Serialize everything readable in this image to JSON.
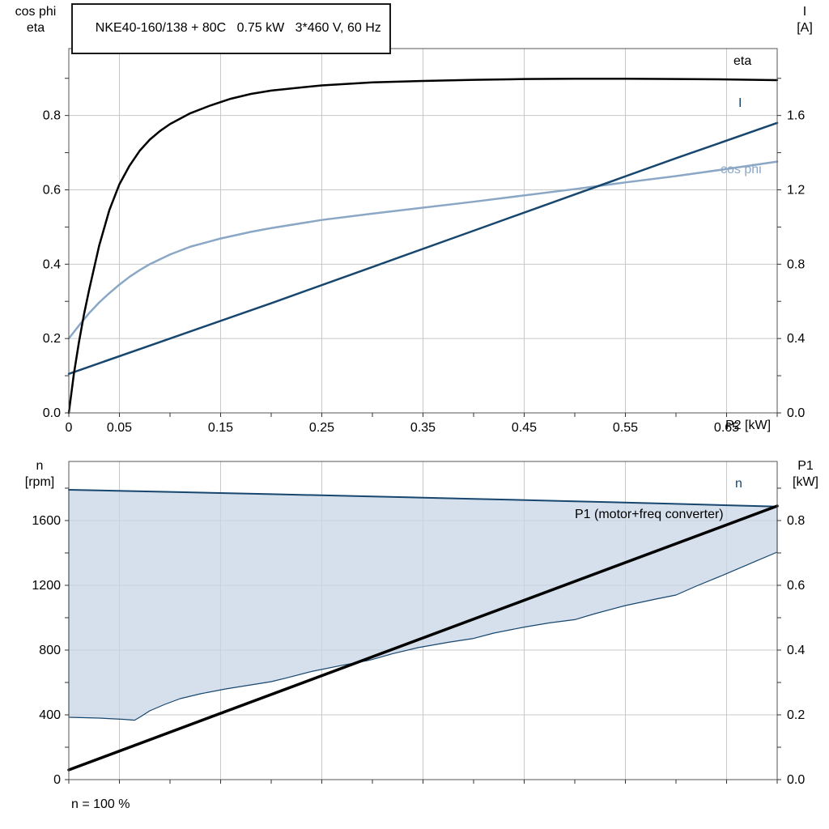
{
  "colors": {
    "grid": "#c8c8c8",
    "frame": "#555555",
    "eta": "#000000",
    "current": "#17466e",
    "cos_phi": "#8aa7c5",
    "speed": "#17466e",
    "p1": "#000000",
    "band_fill": "#c7d6e5"
  },
  "footnote": "n = 100 %",
  "chart_data": [
    {
      "id": "motor-efficiency-chart",
      "type": "line",
      "title": "NKE40-160/138 + 80C   0.75 kW   3*460 V, 60 Hz",
      "x": {
        "min": 0,
        "max": 0.7,
        "label": "P2 [kW]",
        "ticks": [
          {
            "v": 0,
            "t": "0"
          },
          {
            "v": 0.05,
            "t": "0.05"
          },
          {
            "v": 0.15,
            "t": "0.15"
          },
          {
            "v": 0.25,
            "t": "0.25"
          },
          {
            "v": 0.35,
            "t": "0.35"
          },
          {
            "v": 0.45,
            "t": "0.45"
          },
          {
            "v": 0.55,
            "t": "0.55"
          },
          {
            "v": 0.65,
            "t": "0.65"
          }
        ]
      },
      "yl": {
        "min": 0,
        "max": 0.98,
        "label": [
          "cos phi",
          "eta"
        ],
        "ticks": [
          {
            "v": 0.0,
            "t": "0.0"
          },
          {
            "v": 0.2,
            "t": "0.2"
          },
          {
            "v": 0.4,
            "t": "0.4"
          },
          {
            "v": 0.6,
            "t": "0.6"
          },
          {
            "v": 0.8,
            "t": "0.8"
          }
        ]
      },
      "yr": {
        "min": 0,
        "max": 1.96,
        "label": [
          "I",
          "[A]"
        ],
        "ticks": [
          {
            "v": 0.0,
            "t": "0.0"
          },
          {
            "v": 0.4,
            "t": "0.4"
          },
          {
            "v": 0.8,
            "t": "0.8"
          },
          {
            "v": 1.2,
            "t": "1.2"
          },
          {
            "v": 1.6,
            "t": "1.6"
          }
        ]
      },
      "series": [
        {
          "name": "cos phi",
          "axis": "l",
          "color": "#8aa7c5",
          "w": 2.5,
          "pts": [
            [
              0,
              0.2
            ],
            [
              0.01,
              0.235
            ],
            [
              0.02,
              0.268
            ],
            [
              0.03,
              0.297
            ],
            [
              0.04,
              0.322
            ],
            [
              0.05,
              0.345
            ],
            [
              0.06,
              0.366
            ],
            [
              0.07,
              0.384
            ],
            [
              0.08,
              0.4
            ],
            [
              0.1,
              0.426
            ],
            [
              0.12,
              0.447
            ],
            [
              0.15,
              0.469
            ],
            [
              0.18,
              0.487
            ],
            [
              0.2,
              0.497
            ],
            [
              0.25,
              0.519
            ],
            [
              0.3,
              0.536
            ],
            [
              0.35,
              0.552
            ],
            [
              0.4,
              0.568
            ],
            [
              0.45,
              0.585
            ],
            [
              0.5,
              0.602
            ],
            [
              0.55,
              0.62
            ],
            [
              0.6,
              0.637
            ],
            [
              0.65,
              0.656
            ],
            [
              0.7,
              0.676
            ]
          ]
        },
        {
          "name": "I",
          "axis": "r",
          "color": "#17466e",
          "w": 2.5,
          "pts": [
            [
              0,
              0.21
            ],
            [
              0.1,
              0.4
            ],
            [
              0.2,
              0.59
            ],
            [
              0.3,
              0.785
            ],
            [
              0.4,
              0.98
            ],
            [
              0.5,
              1.175
            ],
            [
              0.6,
              1.37
            ],
            [
              0.7,
              1.56
            ]
          ]
        },
        {
          "name": "eta",
          "axis": "l",
          "color": "#000000",
          "w": 2.5,
          "pts": [
            [
              0,
              0
            ],
            [
              0.005,
              0.105
            ],
            [
              0.01,
              0.19
            ],
            [
              0.015,
              0.265
            ],
            [
              0.02,
              0.33
            ],
            [
              0.03,
              0.45
            ],
            [
              0.04,
              0.545
            ],
            [
              0.05,
              0.615
            ],
            [
              0.06,
              0.665
            ],
            [
              0.07,
              0.705
            ],
            [
              0.08,
              0.735
            ],
            [
              0.09,
              0.758
            ],
            [
              0.1,
              0.777
            ],
            [
              0.12,
              0.806
            ],
            [
              0.14,
              0.827
            ],
            [
              0.16,
              0.845
            ],
            [
              0.18,
              0.858
            ],
            [
              0.2,
              0.867
            ],
            [
              0.25,
              0.881
            ],
            [
              0.3,
              0.889
            ],
            [
              0.35,
              0.893
            ],
            [
              0.4,
              0.896
            ],
            [
              0.45,
              0.898
            ],
            [
              0.5,
              0.899
            ],
            [
              0.55,
              0.899
            ],
            [
              0.6,
              0.898
            ],
            [
              0.65,
              0.897
            ],
            [
              0.7,
              0.895
            ]
          ]
        }
      ]
    },
    {
      "id": "speed-power-chart",
      "type": "line",
      "footnote": "n = 100 %",
      "x": {
        "min": 0,
        "max": 0.7,
        "label": "",
        "ticks": [
          {
            "v": 0,
            "t": ""
          },
          {
            "v": 0.05,
            "t": ""
          },
          {
            "v": 0.15,
            "t": ""
          },
          {
            "v": 0.25,
            "t": ""
          },
          {
            "v": 0.35,
            "t": ""
          },
          {
            "v": 0.45,
            "t": ""
          },
          {
            "v": 0.55,
            "t": ""
          },
          {
            "v": 0.65,
            "t": ""
          }
        ]
      },
      "yl": {
        "min": 0,
        "max": 1965,
        "label": [
          "n",
          "[rpm]"
        ],
        "ticks": [
          {
            "v": 0,
            "t": "0"
          },
          {
            "v": 400,
            "t": "400"
          },
          {
            "v": 800,
            "t": "800"
          },
          {
            "v": 1200,
            "t": "1200"
          },
          {
            "v": 1600,
            "t": "1600"
          }
        ]
      },
      "yr": {
        "min": 0,
        "max": 0.9825,
        "label": [
          "P1",
          "[kW]"
        ],
        "ticks": [
          {
            "v": 0.0,
            "t": "0.0"
          },
          {
            "v": 0.2,
            "t": "0.2"
          },
          {
            "v": 0.4,
            "t": "0.4"
          },
          {
            "v": 0.6,
            "t": "0.6"
          },
          {
            "v": 0.8,
            "t": "0.8"
          }
        ]
      },
      "band": {
        "upper_series": "n",
        "fill": "#c7d6e5",
        "opacity": 0.75,
        "edge": "#17466e",
        "lower_pts": [
          [
            0,
            385
          ],
          [
            0.03,
            380
          ],
          [
            0.055,
            372
          ],
          [
            0.065,
            367
          ],
          [
            0.07,
            385
          ],
          [
            0.08,
            425
          ],
          [
            0.095,
            465
          ],
          [
            0.11,
            500
          ],
          [
            0.13,
            530
          ],
          [
            0.155,
            560
          ],
          [
            0.18,
            585
          ],
          [
            0.2,
            605
          ],
          [
            0.215,
            628
          ],
          [
            0.24,
            668
          ],
          [
            0.27,
            706
          ],
          [
            0.295,
            735
          ],
          [
            0.3,
            742
          ],
          [
            0.32,
            778
          ],
          [
            0.345,
            815
          ],
          [
            0.375,
            848
          ],
          [
            0.4,
            872
          ],
          [
            0.42,
            905
          ],
          [
            0.45,
            942
          ],
          [
            0.475,
            968
          ],
          [
            0.5,
            988
          ],
          [
            0.52,
            1025
          ],
          [
            0.55,
            1075
          ],
          [
            0.58,
            1115
          ],
          [
            0.6,
            1140
          ],
          [
            0.62,
            1195
          ],
          [
            0.65,
            1272
          ],
          [
            0.68,
            1352
          ],
          [
            0.7,
            1405
          ]
        ]
      },
      "series": [
        {
          "name": "n",
          "axis": "l",
          "color": "#17466e",
          "w": 2,
          "pts": [
            [
              0,
              1790
            ],
            [
              0.1,
              1777
            ],
            [
              0.2,
              1763
            ],
            [
              0.3,
              1749
            ],
            [
              0.4,
              1734
            ],
            [
              0.5,
              1719
            ],
            [
              0.6,
              1703
            ],
            [
              0.7,
              1686
            ]
          ]
        },
        {
          "name": "P1 (motor+freq converter)",
          "axis": "r",
          "color": "#000000",
          "w": 3.5,
          "pts": [
            [
              0,
              0.03
            ],
            [
              0.7,
              0.845
            ]
          ]
        }
      ]
    }
  ]
}
